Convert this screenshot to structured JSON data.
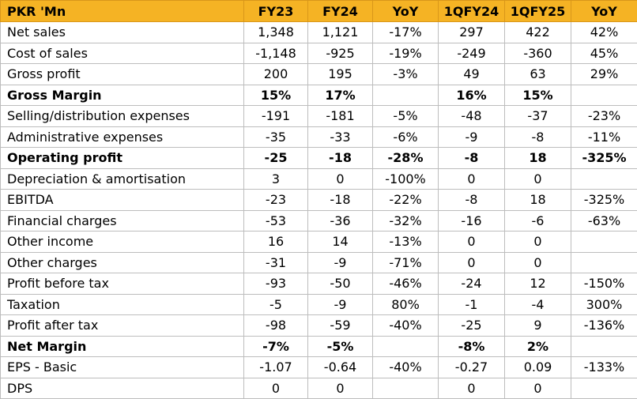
{
  "header": [
    "PKR 'Mn",
    "FY23",
    "FY24",
    "YoY",
    "1QFY24",
    "1QFY25",
    "YoY"
  ],
  "rows": [
    {
      "label": "Net sales",
      "bold": false,
      "values": [
        "1,348",
        "1,121",
        "-17%",
        "297",
        "422",
        "42%"
      ]
    },
    {
      "label": "Cost of sales",
      "bold": false,
      "values": [
        "-1,148",
        "-925",
        "-19%",
        "-249",
        "-360",
        "45%"
      ]
    },
    {
      "label": "Gross profit",
      "bold": false,
      "values": [
        "200",
        "195",
        "-3%",
        "49",
        "63",
        "29%"
      ]
    },
    {
      "label": "Gross Margin",
      "bold": true,
      "values": [
        "15%",
        "17%",
        "",
        "16%",
        "15%",
        ""
      ]
    },
    {
      "label": "Selling/distribution expenses",
      "bold": false,
      "values": [
        "-191",
        "-181",
        "-5%",
        "-48",
        "-37",
        "-23%"
      ]
    },
    {
      "label": "Administrative expenses",
      "bold": false,
      "values": [
        "-35",
        "-33",
        "-6%",
        "-9",
        "-8",
        "-11%"
      ]
    },
    {
      "label": "Operating profit",
      "bold": true,
      "values": [
        "-25",
        "-18",
        "-28%",
        "-8",
        "18",
        "-325%"
      ]
    },
    {
      "label": "Depreciation & amortisation",
      "bold": false,
      "values": [
        "3",
        "0",
        "-100%",
        "0",
        "0",
        ""
      ]
    },
    {
      "label": "EBITDA",
      "bold": false,
      "values": [
        "-23",
        "-18",
        "-22%",
        "-8",
        "18",
        "-325%"
      ]
    },
    {
      "label": "Financial charges",
      "bold": false,
      "values": [
        "-53",
        "-36",
        "-32%",
        "-16",
        "-6",
        "-63%"
      ]
    },
    {
      "label": "Other income",
      "bold": false,
      "values": [
        "16",
        "14",
        "-13%",
        "0",
        "0",
        ""
      ]
    },
    {
      "label": "Other charges",
      "bold": false,
      "values": [
        "-31",
        "-9",
        "-71%",
        "0",
        "0",
        ""
      ]
    },
    {
      "label": "Profit before tax",
      "bold": false,
      "values": [
        "-93",
        "-50",
        "-46%",
        "-24",
        "12",
        "-150%"
      ]
    },
    {
      "label": "Taxation",
      "bold": false,
      "values": [
        "-5",
        "-9",
        "80%",
        "-1",
        "-4",
        "300%"
      ]
    },
    {
      "label": "Profit after tax",
      "bold": false,
      "values": [
        "-98",
        "-59",
        "-40%",
        "-25",
        "9",
        "-136%"
      ]
    },
    {
      "label": "Net Margin",
      "bold": true,
      "values": [
        "-7%",
        "-5%",
        "",
        "-8%",
        "2%",
        ""
      ]
    },
    {
      "label": "EPS - Basic",
      "bold": false,
      "values": [
        "-1.07",
        "-0.64",
        "-40%",
        "-0.27",
        "0.09",
        "-133%"
      ]
    },
    {
      "label": "DPS",
      "bold": false,
      "values": [
        "0",
        "0",
        "",
        "0",
        "0",
        ""
      ]
    }
  ],
  "colors": {
    "header_bg": "#f5b324",
    "border": "#bdbdbd"
  }
}
